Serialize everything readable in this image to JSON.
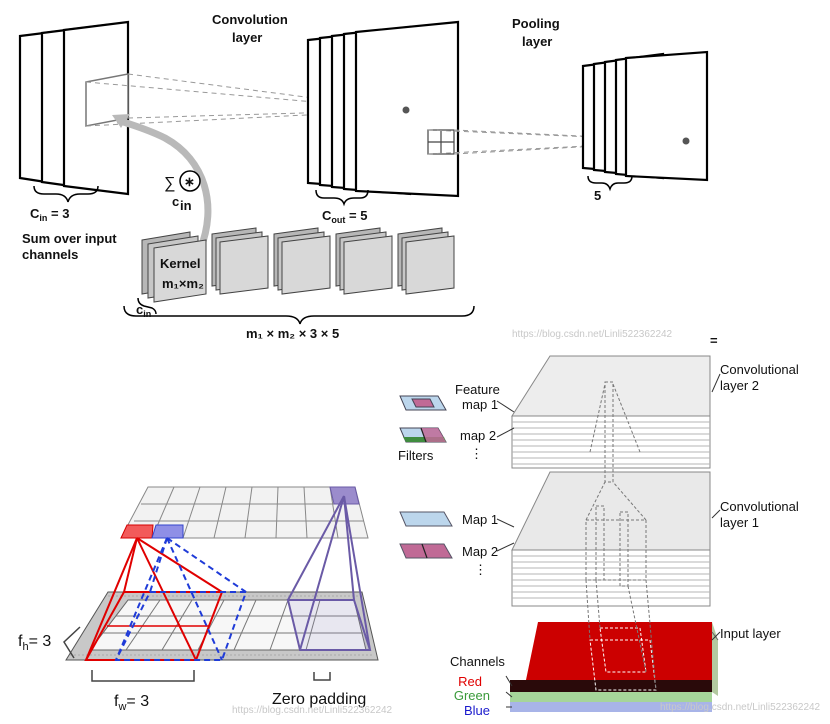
{
  "top": {
    "title_conv": [
      "Convolution",
      "layer"
    ],
    "title_pool": [
      "Pooling",
      "layer"
    ],
    "c_in_base": "C",
    "c_in_sub": "in",
    "c_in_value": " = 3",
    "sum_label": "Sum over input",
    "sum_label2": "channels",
    "sum_symbol": "∑",
    "conv_symbol": "∗",
    "sum_sub": "c",
    "sum_sub_in": "in",
    "c_out_base": "C",
    "c_out_sub": "out",
    "c_out_value": " = 5",
    "pool_count": "5",
    "kernel_title": "Kernel",
    "kernel_dims": "m₁×m₂",
    "kernel_cin_base": "c",
    "kernel_cin_sub": "in",
    "params_formula": "m₁ × m₂ × 3 × 5",
    "watermark": "https://blog.csdn.net/Linli522362242",
    "equals": "="
  },
  "bottom_left": {
    "fh_label": "f",
    "fh_sub": "h",
    "fh_value": "= 3",
    "fw_label": "f",
    "fw_sub": "w",
    "fw_value": "= 3",
    "zero_padding": "Zero padding",
    "watermark": "https://blog.csdn.net/Linli522362242"
  },
  "bottom_right": {
    "conv_layer_2": [
      "Convolutional",
      "layer 2"
    ],
    "conv_layer_1": [
      "Convolutional",
      "layer 1"
    ],
    "input_layer": "Input layer",
    "feature_map_1": [
      "Feature",
      "map 1"
    ],
    "map2_top": "map 2",
    "filters": "Filters",
    "map1": "Map 1",
    "map2": "Map 2",
    "ellipsis": "⋮",
    "channels_title": "Channels",
    "channels": [
      {
        "name": "Red",
        "color": "#e00000"
      },
      {
        "name": "Green",
        "color": "#3a9a3a"
      },
      {
        "name": "Blue",
        "color": "#1a1acc"
      }
    ],
    "watermark": "https://blog.csdn.net/Linli522362242"
  },
  "colors": {
    "red_face": "#d40000",
    "green_face": "#a6d59a",
    "blue_face": "#a8b4e8",
    "pink": "#c06a96",
    "light_blue": "#bcd6ec",
    "filter_green": "#3f8c3f",
    "purple": "#7a66b8"
  }
}
